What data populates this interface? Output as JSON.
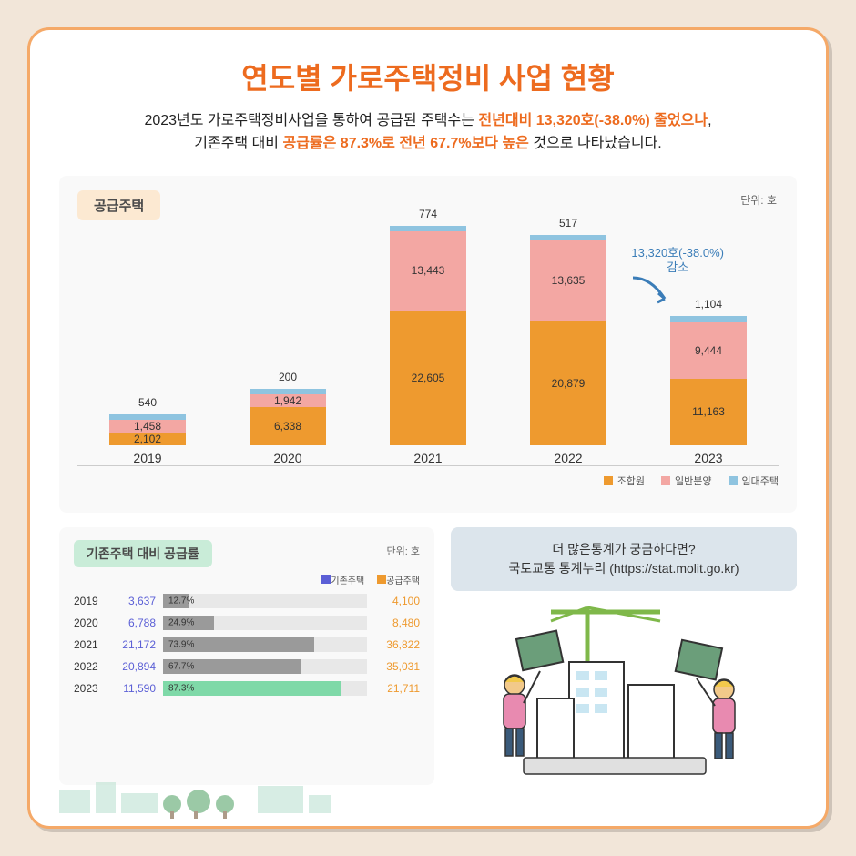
{
  "title": "연도별 가로주택정비 사업 현황",
  "subtitle_parts": {
    "p1": "2023년도 가로주택정비사업을 통하여 공급된 주택수는 ",
    "h1": "전년대비 13,320호(-38.0%) 줄었으나",
    "p2": ",",
    "p3": "기존주택 대비 ",
    "h2": "공급률은 87.3%로 전년 67.7%보다 높은",
    "p4": " 것으로 나타났습니다."
  },
  "main_chart": {
    "badge": "공급주택",
    "unit": "단위: 호",
    "max_total": 36822,
    "colors": {
      "seg1": "#ee9a2f",
      "seg2": "#f3a7a3",
      "seg3": "#8fc4e0",
      "bg": "#f9f9f9"
    },
    "legend": [
      {
        "label": "조합원",
        "color": "#ee9a2f"
      },
      {
        "label": "일반분양",
        "color": "#f3a7a3"
      },
      {
        "label": "임대주택",
        "color": "#8fc4e0"
      }
    ],
    "annotation": {
      "line1": "13,320호(-38.0%)",
      "line2": "감소"
    },
    "bars": [
      {
        "year": "2019",
        "v1": 2102,
        "v2": 1458,
        "v3": 540,
        "l1": "2,102",
        "l2": "1,458",
        "l3": "540"
      },
      {
        "year": "2020",
        "v1": 6338,
        "v2": 1942,
        "v3": 200,
        "l1": "6,338",
        "l2": "1,942",
        "l3": "200"
      },
      {
        "year": "2021",
        "v1": 22605,
        "v2": 13443,
        "v3": 774,
        "l1": "22,605",
        "l2": "13,443",
        "l3": "774"
      },
      {
        "year": "2022",
        "v1": 20879,
        "v2": 13635,
        "v3": 517,
        "l1": "20,879",
        "l2": "13,635",
        "l3": "517"
      },
      {
        "year": "2023",
        "v1": 11163,
        "v2": 9444,
        "v3": 1104,
        "l1": "11,163",
        "l2": "9,444",
        "l3": "1,104"
      }
    ]
  },
  "ratio_chart": {
    "badge": "기존주택 대비 공급률",
    "unit": "단위: 호",
    "legend": [
      {
        "label": "기존주택",
        "color": "#5b5fd6"
      },
      {
        "label": "공급주택",
        "color": "#ee9a2f"
      }
    ],
    "colors": {
      "fill_normal": "#9a9a9a",
      "fill_highlight": "#7fd9a8"
    },
    "rows": [
      {
        "year": "2019",
        "a": "3,637",
        "pct": 12.7,
        "pct_label": "12.7%",
        "b": "4,100",
        "hl": false
      },
      {
        "year": "2020",
        "a": "6,788",
        "pct": 24.9,
        "pct_label": "24.9%",
        "b": "8,480",
        "hl": false
      },
      {
        "year": "2021",
        "a": "21,172",
        "pct": 73.9,
        "pct_label": "73.9%",
        "b": "36,822",
        "hl": false
      },
      {
        "year": "2022",
        "a": "20,894",
        "pct": 67.7,
        "pct_label": "67.7%",
        "b": "35,031",
        "hl": false
      },
      {
        "year": "2023",
        "a": "11,590",
        "pct": 87.3,
        "pct_label": "87.3%",
        "b": "21,711",
        "hl": true
      }
    ]
  },
  "info": {
    "line1": "더 많은통계가 궁금하다면?",
    "line2": "국토교통 통계누리 (https://stat.molit.go.kr)"
  }
}
